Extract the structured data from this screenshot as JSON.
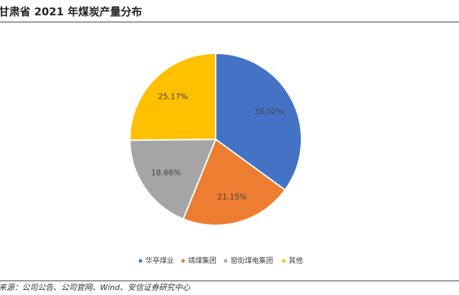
{
  "chart_data": {
    "type": "pie",
    "title": "甘肃省 2021 年煤炭产量分布",
    "categories": [
      "华亭煤业",
      "靖煤集团",
      "窑街煤电集团",
      "其他"
    ],
    "values": [
      35.02,
      21.15,
      18.66,
      25.17
    ],
    "value_labels": [
      "35.02%",
      "21.15%",
      "18.66%",
      "25.17%"
    ],
    "colors": [
      "#4472c4",
      "#ed7d31",
      "#a5a5a5",
      "#ffc000"
    ],
    "legend": "bottom",
    "source": "来源：公司公告、公司官网、Wind、安信证券研究中心"
  }
}
